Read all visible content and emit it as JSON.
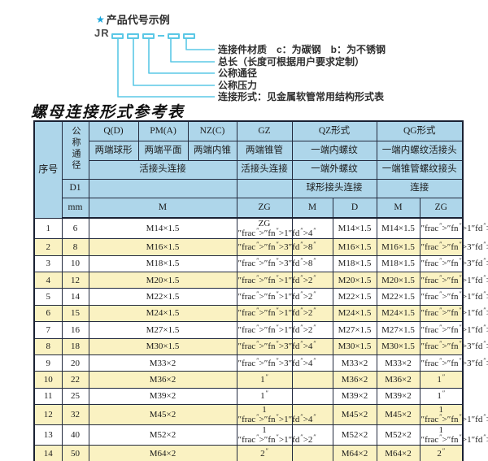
{
  "colors": {
    "accent_cyan": "#5bc8e6",
    "star_blue": "#1ba6dc",
    "header_blue": "#aed6ea",
    "row_yellow": "#faf2c2",
    "border_dark": "#1a2133"
  },
  "diagram": {
    "star": "★",
    "title": "产品代号示例",
    "code_prefix": "JR",
    "box_count": 5,
    "labels": [
      "连接件材质　c：为碳钢　b：为不锈钢",
      "总长（长度可根据用户要求定制）",
      "公称通径",
      "公称压力",
      "连接形式：见金属软管常用结构形式表"
    ]
  },
  "table": {
    "title": "螺母连接形式参考表",
    "header": {
      "seq": "序号",
      "dia": "公称通径",
      "d1": "D1",
      "mm": "mm",
      "joint_left": "活接头连接",
      "columns": {
        "q": {
          "name": "Q(D)",
          "desc": "两端球形"
        },
        "pm": {
          "name": "PM(A)",
          "desc": "两端平面"
        },
        "nz": {
          "name": "NZ(C)",
          "desc": "两端内锥"
        },
        "gz": {
          "name": "GZ",
          "desc": "两端锥管",
          "row3": "活接头连接"
        },
        "qz": {
          "name": "QZ形式",
          "row2": "一端内螺纹",
          "row3": "一端外螺纹",
          "row4": "球形接头连接"
        },
        "qg": {
          "name": "QG形式",
          "row2": "一端内螺纹活接头",
          "row3": "一端锥管螺纹接头",
          "row4": "连接"
        }
      },
      "units": [
        "M",
        "ZG",
        "M",
        "D",
        "M",
        "ZG"
      ]
    },
    "rows": [
      {
        "seq": "1",
        "dn": "6",
        "m": "M14×1.5",
        "zg": "ZG 1/4\"",
        "qz_m": "",
        "qz_d": "M14×1.5",
        "qg_m": "M14×1.5",
        "qg_zg": "1/4\""
      },
      {
        "seq": "2",
        "dn": "8",
        "m": "M16×1.5",
        "zg": "3/8\"",
        "qz_m": "",
        "qz_d": "M16×1.5",
        "qg_m": "M16×1.5",
        "qg_zg": "3/8\""
      },
      {
        "seq": "3",
        "dn": "10",
        "m": "M18×1.5",
        "zg": "3/8\"",
        "qz_m": "",
        "qz_d": "M18×1.5",
        "qg_m": "M18×1.5",
        "qg_zg": "3/8\""
      },
      {
        "seq": "4",
        "dn": "12",
        "m": "M20×1.5",
        "zg": "1/2\"",
        "qz_m": "",
        "qz_d": "M20×1.5",
        "qg_m": "M20×1.5",
        "qg_zg": "1/2\""
      },
      {
        "seq": "5",
        "dn": "14",
        "m": "M22×1.5",
        "zg": "1/2\"",
        "qz_m": "",
        "qz_d": "M22×1.5",
        "qg_m": "M22×1.5",
        "qg_zg": "1/2\""
      },
      {
        "seq": "6",
        "dn": "15",
        "m": "M24×1.5",
        "zg": "1/2\"",
        "qz_m": "",
        "qz_d": "M24×1.5",
        "qg_m": "M24×1.5",
        "qg_zg": "1/2\""
      },
      {
        "seq": "7",
        "dn": "16",
        "m": "M27×1.5",
        "zg": "1/2\"",
        "qz_m": "",
        "qz_d": "M27×1.5",
        "qg_m": "M27×1.5",
        "qg_zg": "1/2\""
      },
      {
        "seq": "8",
        "dn": "18",
        "m": "M30×1.5",
        "zg": "3/4\"",
        "qz_m": "",
        "qz_d": "M30×1.5",
        "qg_m": "M30×1.5",
        "qg_zg": "3/4\""
      },
      {
        "seq": "9",
        "dn": "20",
        "m": "M33×2",
        "zg": "3/4\"",
        "qz_m": "",
        "qz_d": "M33×2",
        "qg_m": "M33×2",
        "qg_zg": "3/4\""
      },
      {
        "seq": "10",
        "dn": "22",
        "m": "M36×2",
        "zg": "1\"",
        "qz_m": "",
        "qz_d": "M36×2",
        "qg_m": "M36×2",
        "qg_zg": "1\""
      },
      {
        "seq": "11",
        "dn": "25",
        "m": "M39×2",
        "zg": "1\"",
        "qz_m": "",
        "qz_d": "M39×2",
        "qg_m": "M39×2",
        "qg_zg": "1\""
      },
      {
        "seq": "12",
        "dn": "32",
        "m": "M45×2",
        "zg": "1 1/4\"",
        "qz_m": "",
        "qz_d": "M45×2",
        "qg_m": "M45×2",
        "qg_zg": "1 1/4\""
      },
      {
        "seq": "13",
        "dn": "40",
        "m": "M52×2",
        "zg": "1 1/2\"",
        "qz_m": "",
        "qz_d": "M52×2",
        "qg_m": "M52×2",
        "qg_zg": "1 1/2\""
      },
      {
        "seq": "14",
        "dn": "50",
        "m": "M64×2",
        "zg": "2\"",
        "qz_m": "",
        "qz_d": "M64×2",
        "qg_m": "M64×2",
        "qg_zg": "2\""
      }
    ]
  }
}
